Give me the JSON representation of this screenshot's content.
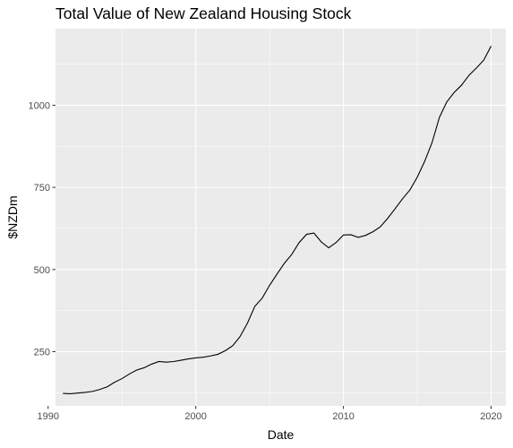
{
  "chart_data": {
    "type": "line",
    "title": "Total Value of New Zealand Housing Stock",
    "xlabel": "Date",
    "ylabel": "$NZDm",
    "xlim": [
      1990.5,
      2021.0
    ],
    "ylim": [
      85,
      1233
    ],
    "x_ticks": [
      1990,
      2000,
      2010,
      2020
    ],
    "y_ticks": [
      250,
      500,
      750,
      1000
    ],
    "grid": true,
    "legend": "none",
    "colors": {
      "panel": "#ebebeb",
      "grid": "#ffffff",
      "line": "#000000",
      "tick_text": "#4d4d4d",
      "tick_mark": "#333333"
    },
    "series": [
      {
        "x": [
          1991.0,
          1991.5,
          1992.0,
          1992.5,
          1993.0,
          1993.5,
          1994.0,
          1994.5,
          1995.0,
          1995.5,
          1996.0,
          1996.5,
          1997.0,
          1997.5,
          1998.0,
          1998.5,
          1999.0,
          1999.5,
          2000.0,
          2000.5,
          2001.0,
          2001.5,
          2002.0,
          2002.5,
          2003.0,
          2003.5,
          2004.0,
          2004.5,
          2005.0,
          2005.5,
          2006.0,
          2006.5,
          2007.0,
          2007.5,
          2008.0,
          2008.5,
          2009.0,
          2009.5,
          2010.0,
          2010.5,
          2011.0,
          2011.5,
          2012.0,
          2012.5,
          2013.0,
          2013.5,
          2014.0,
          2014.5,
          2015.0,
          2015.5,
          2016.0,
          2016.5,
          2017.0,
          2017.5,
          2018.0,
          2018.5,
          2019.0,
          2019.5,
          2020.0
        ],
        "values": [
          123,
          122,
          124,
          126,
          129,
          135,
          143,
          157,
          168,
          182,
          194,
          201,
          212,
          220,
          218,
          220,
          224,
          228,
          231,
          233,
          237,
          242,
          253,
          268,
          296,
          337,
          388,
          413,
          452,
          486,
          519,
          546,
          582,
          607,
          611,
          584,
          566,
          582,
          605,
          606,
          598,
          604,
          615,
          630,
          656,
          685,
          715,
          742,
          781,
          829,
          886,
          963,
          1010,
          1039,
          1061,
          1091,
          1113,
          1137,
          1180
        ]
      }
    ]
  }
}
